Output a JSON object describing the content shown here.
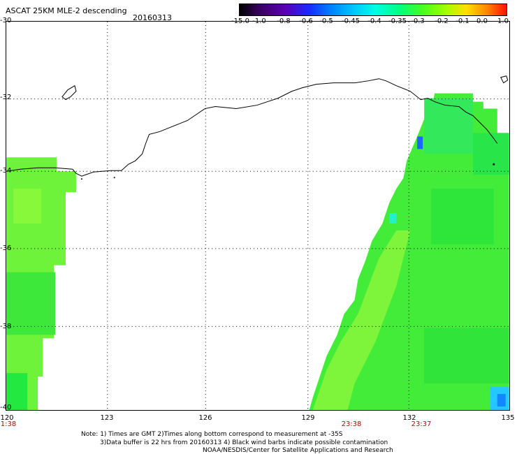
{
  "title": "ASCAT 25KM MLE-2 descending",
  "date": "20160313",
  "colorbar": {
    "labels": [
      "-15.0",
      "-1.0",
      "-0.8",
      "-0.6",
      "-0.5",
      "-0.45",
      "-0.4",
      "-0.35",
      "-0.3",
      "-0.2",
      "-0.1",
      "0.0",
      "1.0"
    ],
    "colors": [
      "#000000",
      "#3b0066",
      "#5a00b4",
      "#1a2aff",
      "#0080ff",
      "#00c8ff",
      "#00ffe0",
      "#00ff80",
      "#00ff40",
      "#80ff00",
      "#ffe000",
      "#ff8000",
      "#ff2000"
    ]
  },
  "axes": {
    "lat_labels": [
      "-30",
      "-32",
      "-34",
      "-36",
      "-38",
      "-40"
    ],
    "lon_labels": [
      "120",
      "123",
      "126",
      "129",
      "132",
      "135"
    ]
  },
  "times": [
    "1:38",
    "23:38",
    "23:37"
  ],
  "notes": {
    "line1": "Note: 1) Times are GMT 2)Times along bottom correspond to measurement at -35S",
    "line2": "3)Data buffer is 22 hrs from 20160313 4) Black wind barbs indicate possible contamination",
    "credit": "NOAA/NESDIS/Center for Satellite Applications and Research"
  },
  "swath_colors": {
    "dominant": "#33ee33",
    "yellow_green": "#88ff22",
    "cyan": "#22ffcc",
    "blue": "#1166ff"
  }
}
